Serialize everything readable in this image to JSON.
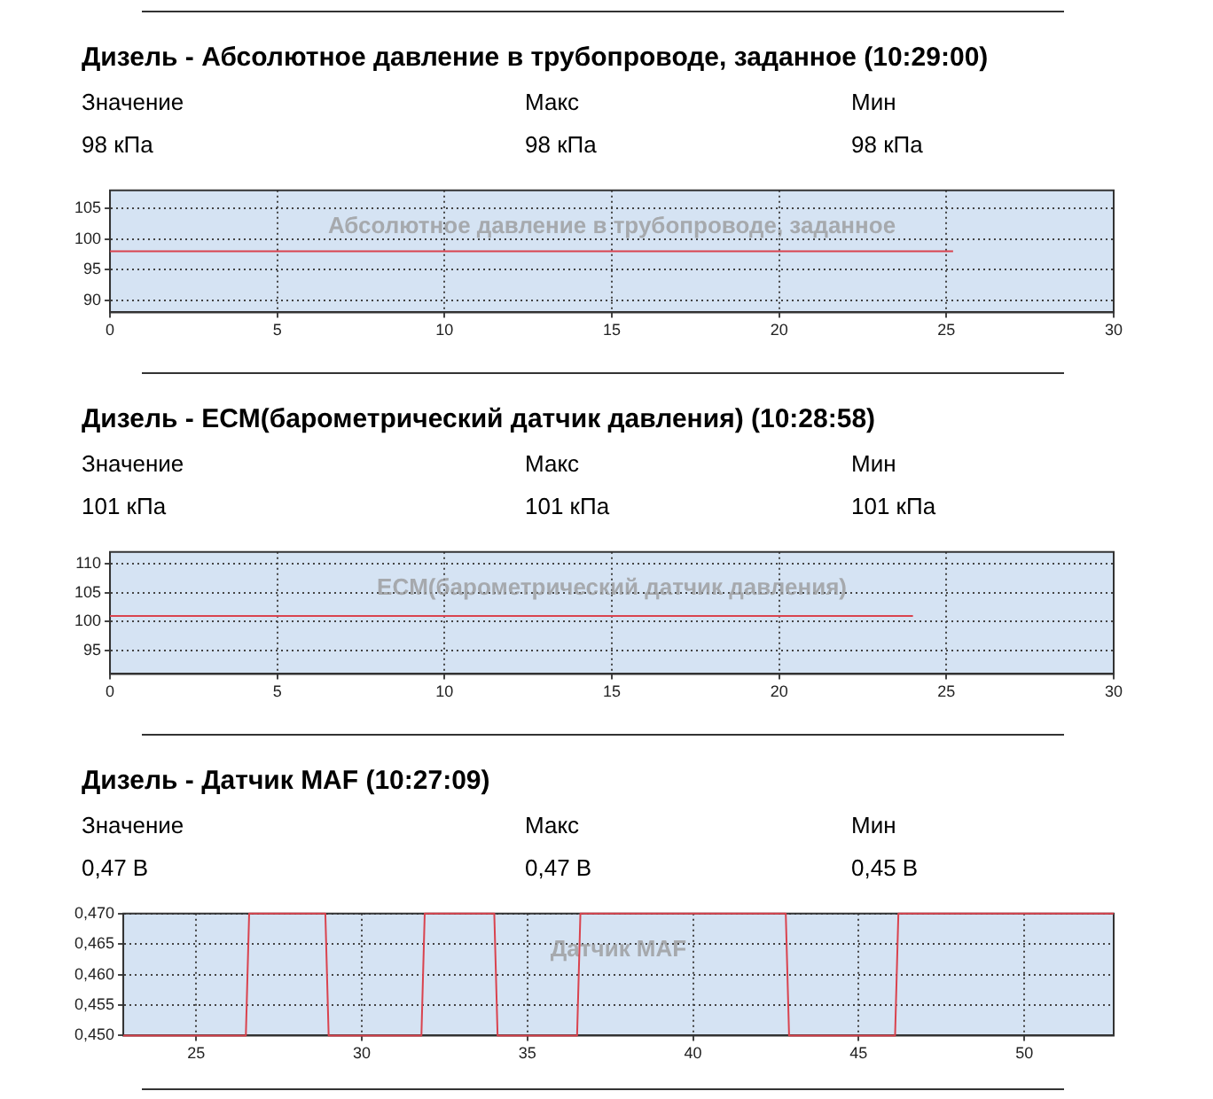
{
  "chart_data": [
    {
      "type": "line",
      "title": "Дизель - Абсолютное давление в трубопроводе, заданное (10:29:00)",
      "annotations": [
        "Значение",
        "Макс",
        "Мин",
        "98 кПа",
        "98 кПа",
        "98 кПа",
        "Абсолютное давление в трубопроводе, заданное"
      ],
      "x": [
        0,
        25.2
      ],
      "values": [
        98,
        98
      ],
      "color": "#d9434e",
      "xlim": [
        0,
        30
      ],
      "xticks": [
        0,
        5,
        10,
        15,
        20,
        25,
        30
      ],
      "ylim": [
        88,
        108
      ],
      "yticks": [
        90,
        95,
        100,
        105
      ],
      "grid": true,
      "legend": false,
      "marker": "none",
      "line_style": "solid"
    },
    {
      "type": "line",
      "title": "Дизель - ECM(барометрический датчик давления) (10:28:58)",
      "annotations": [
        "Значение",
        "Макс",
        "Мин",
        "101 кПа",
        "101 кПа",
        "101 кПа",
        "ECM(барометрический датчик давления)"
      ],
      "x": [
        0,
        24
      ],
      "values": [
        101,
        101
      ],
      "color": "#d9434e",
      "xlim": [
        0,
        30
      ],
      "xticks": [
        0,
        5,
        10,
        15,
        20,
        25,
        30
      ],
      "ylim": [
        91,
        112
      ],
      "yticks": [
        95,
        100,
        105,
        110
      ],
      "grid": true,
      "legend": false,
      "marker": "none",
      "line_style": "solid"
    },
    {
      "type": "line",
      "title": "Дизель - Датчик MAF (10:27:09)",
      "annotations": [
        "Значение",
        "Макс",
        "Мин",
        "0,47 В",
        "0,47 В",
        "0,45 В",
        "Датчик MAF"
      ],
      "x": [
        22.8,
        26.5,
        26.6,
        28.9,
        29.0,
        31.8,
        31.9,
        34.0,
        34.1,
        36.5,
        36.6,
        42.8,
        42.9,
        46.1,
        46.2,
        52.7
      ],
      "values": [
        0.45,
        0.45,
        0.47,
        0.47,
        0.45,
        0.45,
        0.47,
        0.47,
        0.45,
        0.45,
        0.47,
        0.47,
        0.45,
        0.45,
        0.47,
        0.47
      ],
      "color": "#d9434e",
      "xlim": [
        22.8,
        52.7
      ],
      "xticks": [
        25,
        30,
        35,
        40,
        45,
        50
      ],
      "ylim": [
        0.45,
        0.47
      ],
      "yticks": [
        {
          "value": 0.45,
          "label": "0,450"
        },
        {
          "value": 0.455,
          "label": "0,455"
        },
        {
          "value": 0.46,
          "label": "0,460"
        },
        {
          "value": 0.465,
          "label": "0,465"
        },
        {
          "value": 0.47,
          "label": "0,470"
        }
      ],
      "grid": true,
      "legend": false,
      "marker": "none",
      "line_style": "solid"
    }
  ]
}
